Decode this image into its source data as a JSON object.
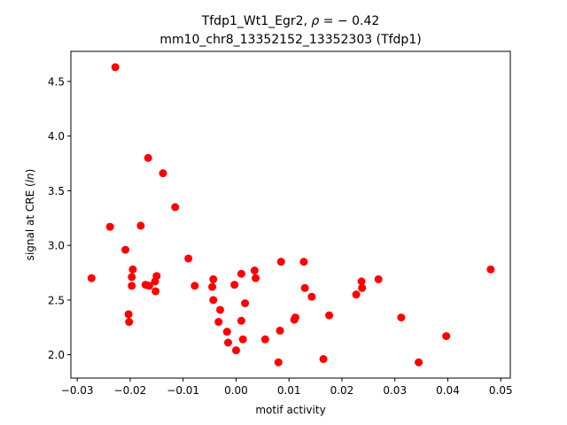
{
  "chart_data": {
    "type": "scatter",
    "title_line1_prefix": "Tfdp1_Wt1_Egr2, ",
    "title_line1_rho": "ρ",
    "title_line1_suffix": " = − 0.42",
    "title_line2": "mm10_chr8_13352152_13352303 (Tfdp1)",
    "xlabel": "motif activity",
    "ylabel_prefix": "signal at CRE (",
    "ylabel_italic": "ln",
    "ylabel_suffix": ")",
    "xlim": [
      -0.0312,
      0.0518
    ],
    "ylim": [
      1.786,
      4.775
    ],
    "xticks": [
      -0.03,
      -0.02,
      -0.01,
      0.0,
      0.01,
      0.02,
      0.03,
      0.04,
      0.05
    ],
    "xtick_labels": [
      "−0.03",
      "−0.02",
      "−0.01",
      "0.00",
      "0.01",
      "0.02",
      "0.03",
      "0.04",
      "0.05"
    ],
    "yticks": [
      2.0,
      2.5,
      3.0,
      3.5,
      4.0,
      4.5
    ],
    "ytick_labels": [
      "2.0",
      "2.5",
      "3.0",
      "3.5",
      "4.0",
      "4.5"
    ],
    "grid": false,
    "marker_color": "#ff0000",
    "points": [
      {
        "x": -0.0273,
        "y": 2.7
      },
      {
        "x": -0.0238,
        "y": 3.17
      },
      {
        "x": -0.0228,
        "y": 4.63
      },
      {
        "x": -0.0209,
        "y": 2.96
      },
      {
        "x": -0.0203,
        "y": 2.37
      },
      {
        "x": -0.0202,
        "y": 2.3
      },
      {
        "x": -0.0197,
        "y": 2.63
      },
      {
        "x": -0.0197,
        "y": 2.71
      },
      {
        "x": -0.0195,
        "y": 2.78
      },
      {
        "x": -0.018,
        "y": 3.18
      },
      {
        "x": -0.0171,
        "y": 2.64
      },
      {
        "x": -0.0166,
        "y": 3.8
      },
      {
        "x": -0.0164,
        "y": 2.63
      },
      {
        "x": -0.0153,
        "y": 2.67
      },
      {
        "x": -0.0152,
        "y": 2.58
      },
      {
        "x": -0.015,
        "y": 2.72
      },
      {
        "x": -0.0138,
        "y": 3.66
      },
      {
        "x": -0.0115,
        "y": 3.35
      },
      {
        "x": -0.009,
        "y": 2.88
      },
      {
        "x": -0.0078,
        "y": 2.63
      },
      {
        "x": -0.0045,
        "y": 2.62
      },
      {
        "x": -0.0043,
        "y": 2.69
      },
      {
        "x": -0.0043,
        "y": 2.5
      },
      {
        "x": -0.0033,
        "y": 2.3
      },
      {
        "x": -0.003,
        "y": 2.41
      },
      {
        "x": -0.0017,
        "y": 2.21
      },
      {
        "x": -0.0015,
        "y": 2.11
      },
      {
        "x": -0.0003,
        "y": 2.64
      },
      {
        "x": 0.0,
        "y": 2.04
      },
      {
        "x": 0.001,
        "y": 2.74
      },
      {
        "x": 0.001,
        "y": 2.31
      },
      {
        "x": 0.0013,
        "y": 2.14
      },
      {
        "x": 0.0017,
        "y": 2.47
      },
      {
        "x": 0.0035,
        "y": 2.77
      },
      {
        "x": 0.0037,
        "y": 2.7
      },
      {
        "x": 0.0055,
        "y": 2.14
      },
      {
        "x": 0.008,
        "y": 1.93
      },
      {
        "x": 0.0083,
        "y": 2.22
      },
      {
        "x": 0.0085,
        "y": 2.85
      },
      {
        "x": 0.011,
        "y": 2.32
      },
      {
        "x": 0.0112,
        "y": 2.34
      },
      {
        "x": 0.0128,
        "y": 2.85
      },
      {
        "x": 0.013,
        "y": 2.61
      },
      {
        "x": 0.0143,
        "y": 2.53
      },
      {
        "x": 0.0165,
        "y": 1.96
      },
      {
        "x": 0.0176,
        "y": 2.36
      },
      {
        "x": 0.0227,
        "y": 2.55
      },
      {
        "x": 0.0237,
        "y": 2.67
      },
      {
        "x": 0.0238,
        "y": 2.61
      },
      {
        "x": 0.0269,
        "y": 2.69
      },
      {
        "x": 0.0312,
        "y": 2.34
      },
      {
        "x": 0.0345,
        "y": 1.93
      },
      {
        "x": 0.0397,
        "y": 2.17
      },
      {
        "x": 0.0481,
        "y": 2.78
      }
    ]
  }
}
